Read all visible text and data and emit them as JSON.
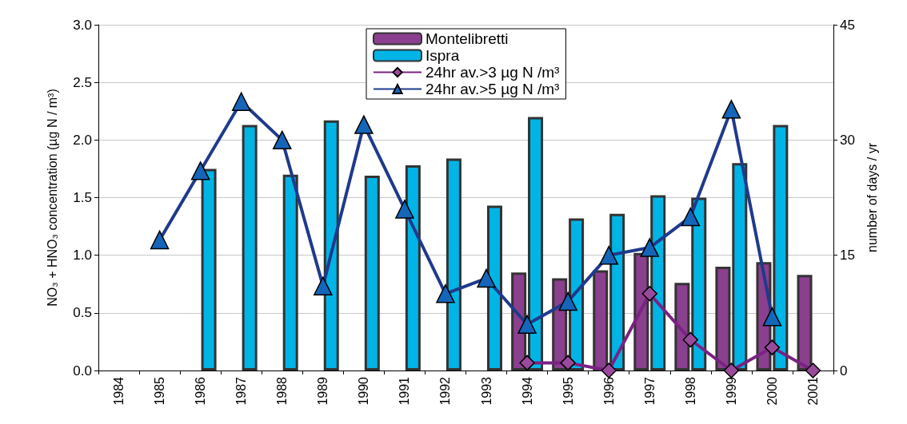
{
  "chart_data": {
    "type": "bar",
    "ylabel": "NO₃ + HNO₃ concentration (µg N / m³)",
    "y2label": "number of days / yr",
    "categories": [
      "1984",
      "1985",
      "1986",
      "1987",
      "1988",
      "1989",
      "1990",
      "1991",
      "1992",
      "1993",
      "1994",
      "1995",
      "1996",
      "1997",
      "1998",
      "1999",
      "2000",
      "2001"
    ],
    "series": [
      {
        "name": "Montelibretti",
        "color": "#8b3f8f",
        "values": [
          null,
          null,
          null,
          null,
          null,
          null,
          null,
          null,
          null,
          null,
          0.85,
          0.8,
          0.87,
          1.02,
          0.76,
          0.9,
          0.94,
          0.83
        ]
      },
      {
        "name": "Ispra",
        "color": "#00b4e6",
        "values": [
          null,
          null,
          1.75,
          2.13,
          1.7,
          2.17,
          1.69,
          1.78,
          1.84,
          1.43,
          2.2,
          1.32,
          1.36,
          1.52,
          1.5,
          1.8,
          2.13,
          null
        ]
      },
      {
        "name": "24hr av.>3 µg N /m³",
        "type": "line",
        "axis": "y2",
        "marker": "diamond",
        "color": "#7a2283",
        "values": [
          null,
          null,
          null,
          null,
          null,
          null,
          null,
          null,
          null,
          null,
          1,
          1,
          0,
          10,
          4,
          0,
          3,
          0
        ]
      },
      {
        "name": "24hr av.>5 µg N /m³",
        "type": "line",
        "axis": "y2",
        "marker": "triangle",
        "color": "#1f3a8c",
        "values": [
          null,
          17,
          26,
          35,
          30,
          11,
          32,
          21,
          10,
          12,
          6,
          9,
          15,
          16,
          20,
          34,
          7,
          null
        ]
      }
    ],
    "ylim": [
      0,
      3.0
    ],
    "yticks": [
      {
        "value": 0,
        "label": "0.0"
      },
      {
        "value": 0.5,
        "label": "0.5"
      },
      {
        "value": 1,
        "label": "1.0"
      },
      {
        "value": 1.5,
        "label": "1.5"
      },
      {
        "value": 2,
        "label": "2.0"
      },
      {
        "value": 2.5,
        "label": "2.5"
      },
      {
        "value": 3,
        "label": "3.0"
      }
    ],
    "y2lim": [
      0,
      45
    ],
    "y2ticks": [
      0,
      15,
      30,
      45
    ],
    "grid": "y",
    "legend": "top",
    "line_style": "solid"
  }
}
